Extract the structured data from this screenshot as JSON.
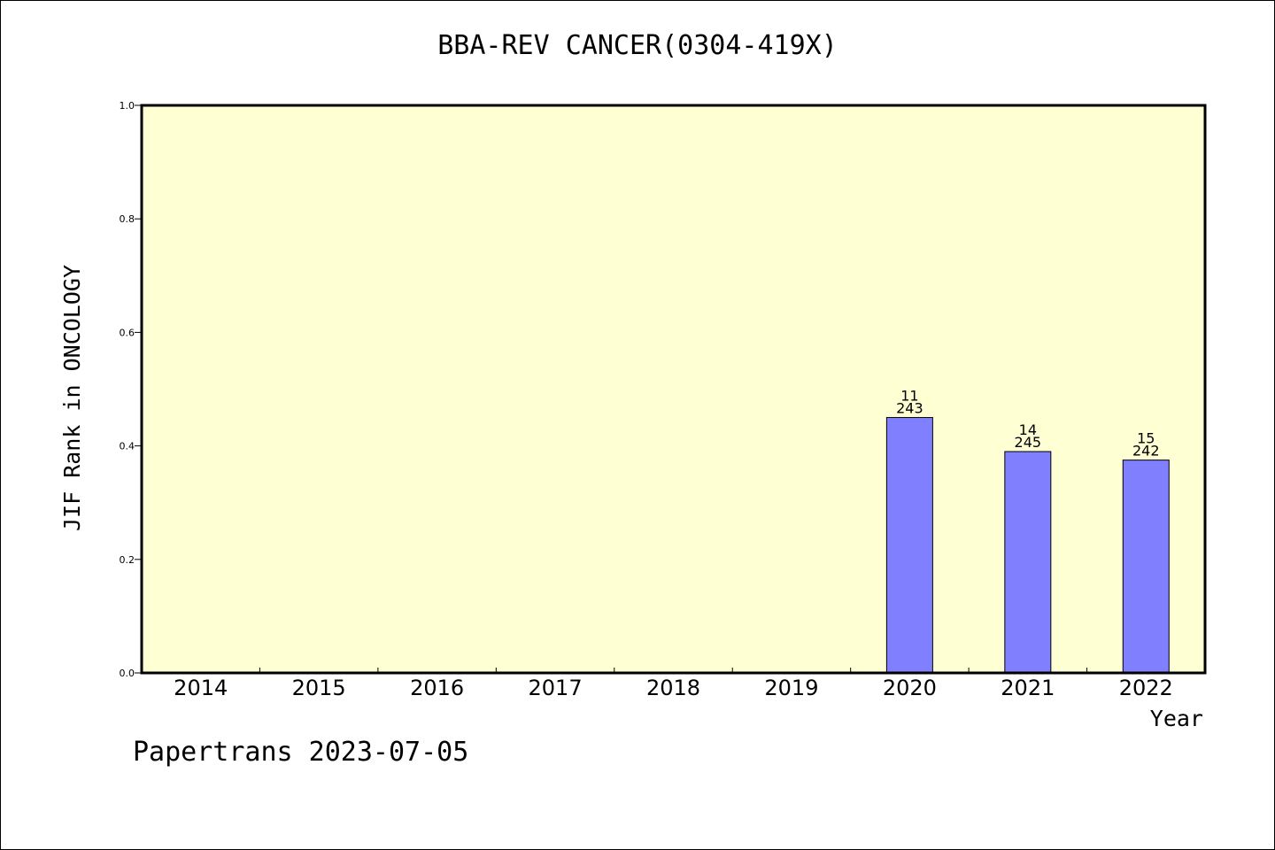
{
  "chart_data": {
    "type": "bar",
    "title": "BBA-REV CANCER(0304-419X)",
    "xlabel": "Year",
    "ylabel": "JIF Rank in ONCOLOGY",
    "ylim": [
      0,
      1.0
    ],
    "yticks": [
      "0.0",
      "0.2",
      "0.4",
      "0.6",
      "0.8",
      "1.0"
    ],
    "categories": [
      "2014",
      "2015",
      "2016",
      "2017",
      "2018",
      "2019",
      "2020",
      "2021",
      "2022"
    ],
    "values": [
      null,
      null,
      null,
      null,
      null,
      null,
      0.45,
      0.39,
      0.375
    ],
    "bar_labels": [
      null,
      null,
      null,
      null,
      null,
      null,
      {
        "rank": "11",
        "total": "243"
      },
      {
        "rank": "14",
        "total": "245"
      },
      {
        "rank": "15",
        "total": "242"
      }
    ],
    "colors": {
      "plot_background": "#ffffd4",
      "bar_fill": "#8080ff"
    },
    "grid": false,
    "legend": "none"
  },
  "footer": {
    "note": "Papertrans 2023-07-05"
  }
}
